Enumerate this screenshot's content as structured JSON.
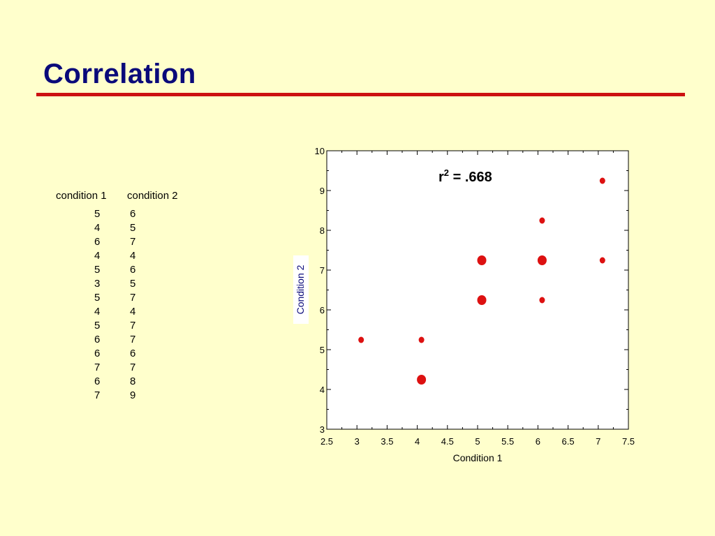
{
  "slide": {
    "title": "Correlation"
  },
  "table": {
    "headers": [
      "condition 1",
      "condition 2"
    ],
    "rows": [
      [
        5,
        6
      ],
      [
        4,
        5
      ],
      [
        6,
        7
      ],
      [
        4,
        4
      ],
      [
        5,
        6
      ],
      [
        3,
        5
      ],
      [
        5,
        7
      ],
      [
        4,
        4
      ],
      [
        5,
        7
      ],
      [
        6,
        7
      ],
      [
        6,
        6
      ],
      [
        7,
        7
      ],
      [
        6,
        8
      ],
      [
        7,
        9
      ]
    ]
  },
  "chart_data": {
    "type": "scatter",
    "title": "",
    "annotation": "r² = .668",
    "xlabel": "Condition 1",
    "ylabel": "Condition 2",
    "xlim": [
      2.5,
      7.5
    ],
    "ylim": [
      3,
      10
    ],
    "x_ticks": [
      "2.5",
      "3",
      "3.5",
      "4",
      "4.5",
      "5",
      "5.5",
      "6",
      "6.5",
      "7",
      "7.5"
    ],
    "y_ticks": [
      "3",
      "4",
      "5",
      "6",
      "7",
      "8",
      "9",
      "10"
    ],
    "points": [
      {
        "x": 3,
        "y": 5,
        "count": 1
      },
      {
        "x": 4,
        "y": 4,
        "count": 2
      },
      {
        "x": 4,
        "y": 5,
        "count": 1
      },
      {
        "x": 5,
        "y": 6,
        "count": 2
      },
      {
        "x": 5,
        "y": 7,
        "count": 2
      },
      {
        "x": 6,
        "y": 6,
        "count": 1
      },
      {
        "x": 6,
        "y": 7,
        "count": 2
      },
      {
        "x": 6,
        "y": 8,
        "count": 1
      },
      {
        "x": 7,
        "y": 7,
        "count": 1
      },
      {
        "x": 7,
        "y": 9,
        "count": 1
      }
    ],
    "grid": false,
    "marker_color": "#dd1111"
  }
}
